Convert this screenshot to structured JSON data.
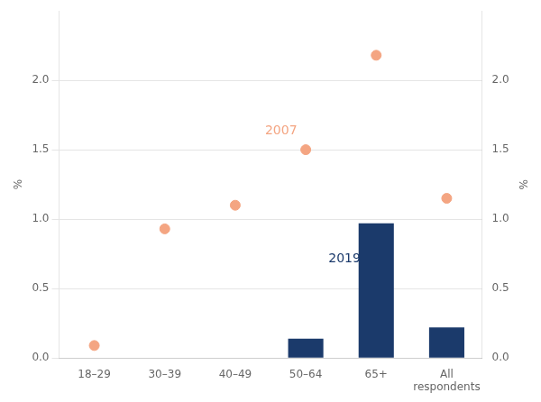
{
  "chart_data": {
    "type": "bar",
    "categories": [
      "18–29",
      "30–39",
      "40–49",
      "50–64",
      "65+",
      "All\nrespondents"
    ],
    "series": [
      {
        "name": "2019",
        "type": "bar",
        "color": "#1B3A6B",
        "values": [
          0.0,
          0.0,
          0.0,
          0.14,
          0.97,
          0.22
        ]
      },
      {
        "name": "2007",
        "type": "scatter",
        "color": "#F4A582",
        "values": [
          0.09,
          0.93,
          1.1,
          1.5,
          2.18,
          1.15
        ]
      }
    ],
    "annotations": [
      {
        "text": "2019",
        "x": 3.55,
        "y": 0.76,
        "color": "#1B3A6B"
      },
      {
        "text": "2007",
        "x": 2.65,
        "y": 1.59,
        "color": "#F4A582"
      }
    ],
    "ylabel": "%",
    "y2label": "%",
    "ylim": [
      0.0,
      2.5
    ],
    "yticks": [
      {
        "value": 0.0,
        "label": "0.0"
      },
      {
        "value": 0.5,
        "label": "0.5"
      },
      {
        "value": 1.0,
        "label": "1.0"
      },
      {
        "value": 1.5,
        "label": "1.5"
      },
      {
        "value": 2.0,
        "label": "2.0"
      }
    ],
    "y2lim": [
      0.0,
      2.5
    ],
    "y2ticks": [
      {
        "value": 0.0,
        "label": "0.0"
      },
      {
        "value": 0.5,
        "label": "0.5"
      },
      {
        "value": 1.0,
        "label": "1.0"
      },
      {
        "value": 1.5,
        "label": "1.5"
      },
      {
        "value": 2.0,
        "label": "2.0"
      }
    ],
    "grid": true
  }
}
